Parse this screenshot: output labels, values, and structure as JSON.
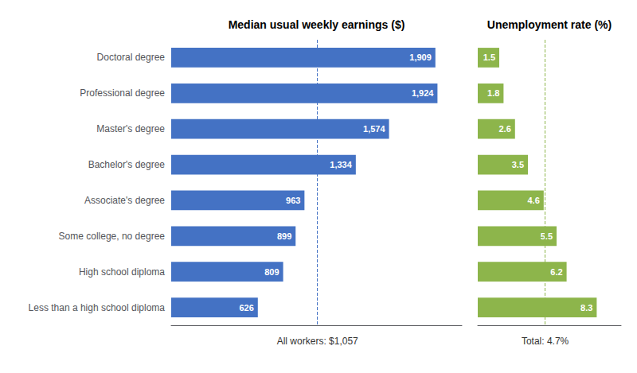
{
  "chart_data": [
    {
      "type": "bar",
      "orientation": "horizontal",
      "title": "Median usual weekly earnings ($)",
      "categories": [
        "Doctoral degree",
        "Professional degree",
        "Master's degree",
        "Bachelor's degree",
        "Associate's degree",
        "Some college, no degree",
        "High school diploma",
        "Less than a high school diploma"
      ],
      "values": [
        1909,
        1924,
        1574,
        1334,
        963,
        899,
        809,
        626
      ],
      "value_labels": [
        "1,909",
        "1,924",
        "1,574",
        "1,334",
        "963",
        "899",
        "809",
        "626"
      ],
      "color": "#4472C4",
      "xlim": [
        0,
        2100
      ],
      "data_labels": true,
      "grid": false,
      "tick_labels": "y",
      "reference_line": {
        "value": 1057,
        "label": "All workers: $1,057"
      }
    },
    {
      "type": "bar",
      "orientation": "horizontal",
      "title": "Unemployment rate (%)",
      "categories": [
        "Doctoral degree",
        "Professional degree",
        "Master's degree",
        "Bachelor's degree",
        "Associate's degree",
        "Some college, no degree",
        "High school diploma",
        "Less than a high school diploma"
      ],
      "values": [
        1.5,
        1.8,
        2.6,
        3.5,
        4.6,
        5.5,
        6.2,
        8.3
      ],
      "color": "#8DB54B",
      "xlim": [
        0,
        10
      ],
      "data_labels": true,
      "grid": false,
      "tick_labels": false,
      "reference_line": {
        "value": 4.7,
        "label": "Total: 4.7%"
      }
    }
  ]
}
